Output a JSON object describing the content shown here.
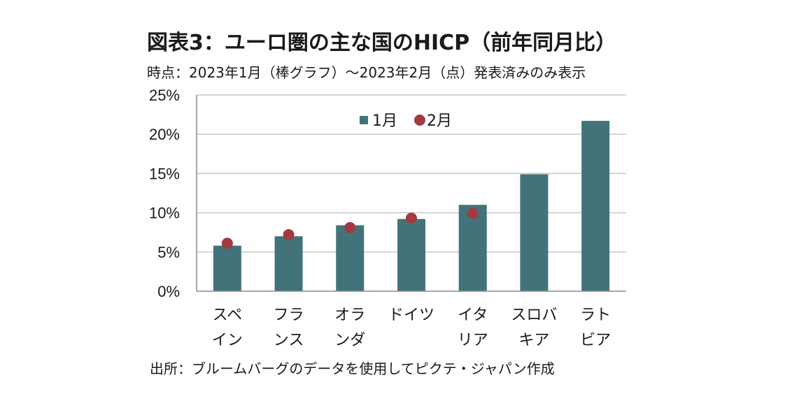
{
  "chart_data": {
    "type": "bar",
    "title": "図表3：ユーロ圏の主な国のHICP（前年同月比）",
    "subtitle": "時点：2023年1月（棒グラフ）～2023年2月（点）発表済みのみ表示",
    "source": "出所：ブルームバーグのデータを使用してピクテ・ジャパン作成",
    "categories": [
      [
        "スペ",
        "イン"
      ],
      [
        "フラ",
        "ンス"
      ],
      [
        "オラ",
        "ンダ"
      ],
      [
        "ドイツ",
        ""
      ],
      [
        "イタ",
        "リア"
      ],
      [
        "スロバ",
        "キア"
      ],
      [
        "ラト",
        "ビア"
      ]
    ],
    "series": [
      {
        "name": "1月",
        "kind": "bar",
        "color": "#43737a",
        "values": [
          5.8,
          7.0,
          8.4,
          9.2,
          11.0,
          14.9,
          21.7
        ]
      },
      {
        "name": "2月",
        "kind": "point",
        "color": "#a23a41",
        "values": [
          6.1,
          7.2,
          8.1,
          9.3,
          9.9,
          null,
          null
        ]
      }
    ],
    "ylim": [
      0,
      25
    ],
    "yticks": [
      0,
      5,
      10,
      15,
      20,
      25
    ],
    "ytick_suffix": "%",
    "grid": true,
    "legend_position": "top-center"
  }
}
